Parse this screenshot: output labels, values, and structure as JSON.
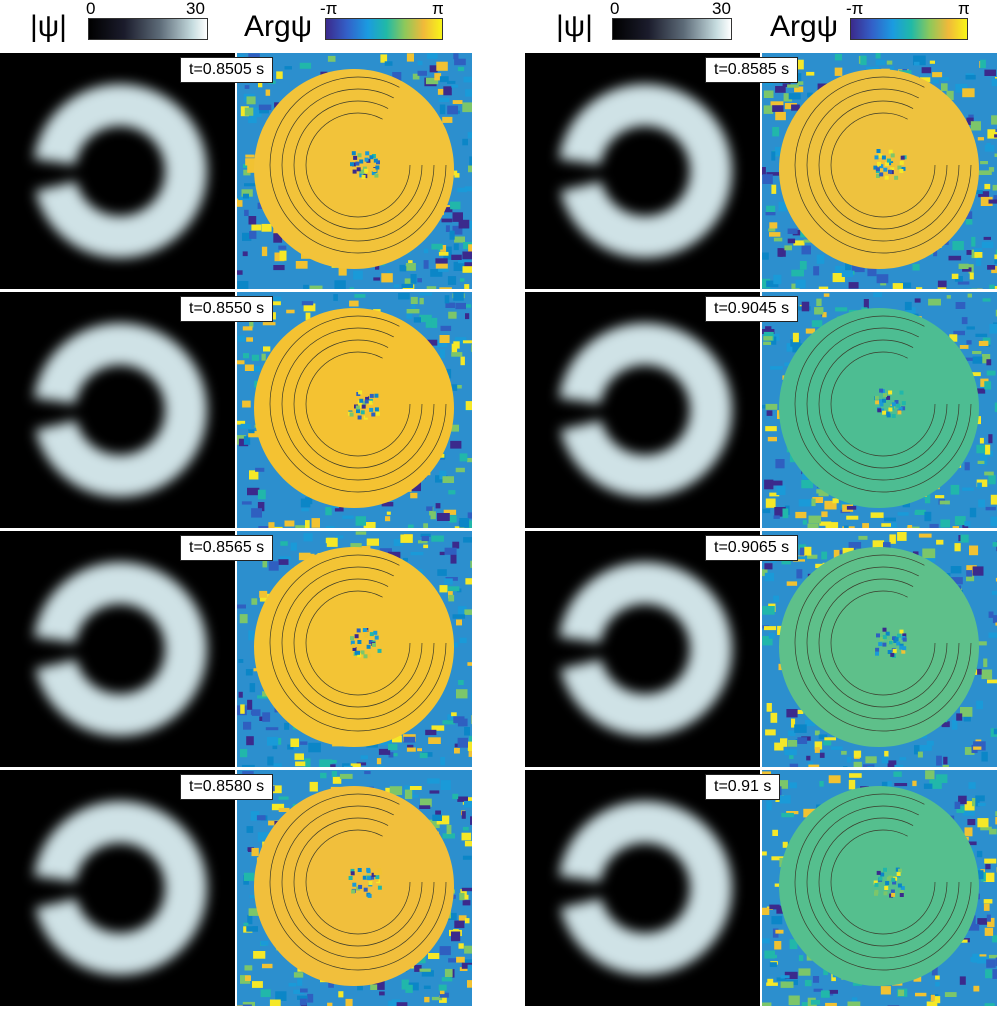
{
  "colorbar_magnitude": {
    "label": "|ψ|",
    "min_label": "0",
    "max_label": "30",
    "gradient": [
      "#000000",
      "#1b1c2c",
      "#5d6b78",
      "#c7dde0",
      "#ffffff"
    ]
  },
  "colorbar_phase": {
    "label": "Argψ",
    "min_label": "-π",
    "max_label": "π",
    "gradient": [
      "#3b2a8c",
      "#3360c8",
      "#1b9be0",
      "#20b9a7",
      "#8ec85a",
      "#f0b93a",
      "#f8f518"
    ]
  },
  "columns": [
    {
      "frames": [
        {
          "time": "t=0.8505 s",
          "phase_color": "#f2c33a"
        },
        {
          "time": "t=0.8550 s",
          "phase_color": "#f4c232"
        },
        {
          "time": "t=0.8565 s",
          "phase_color": "#f3c435"
        },
        {
          "time": "t=0.8580 s",
          "phase_color": "#f1bf3c"
        }
      ]
    },
    {
      "frames": [
        {
          "time": "t=0.8585 s",
          "phase_color": "#eec23e"
        },
        {
          "time": "t=0.9045 s",
          "phase_color": "#4dbd92"
        },
        {
          "time": "t=0.9065 s",
          "phase_color": "#5ec08a"
        },
        {
          "time": "t=0.91 s",
          "phase_color": "#55bf8e"
        }
      ]
    }
  ]
}
